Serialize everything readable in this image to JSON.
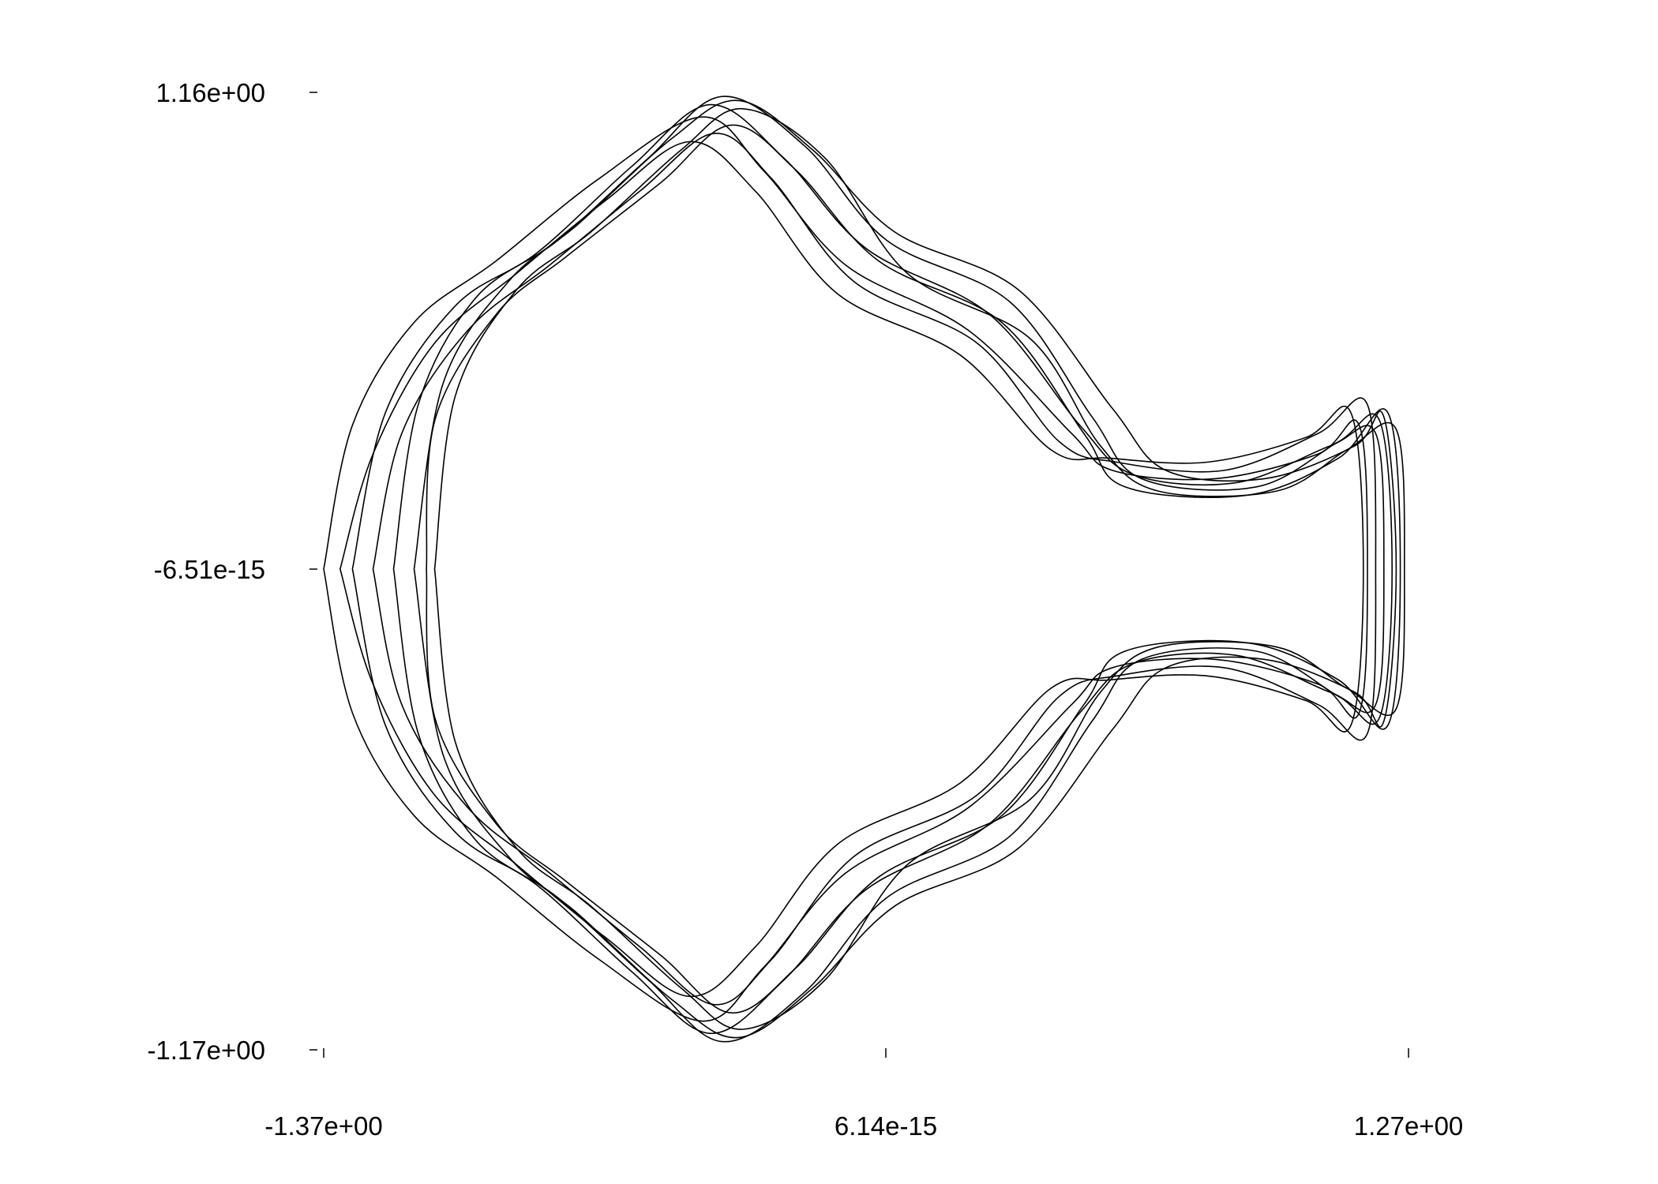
{
  "chart_data": {
    "type": "line",
    "title": "",
    "xlabel": "",
    "ylabel": "",
    "xlim": [
      -1.37,
      1.27
    ],
    "ylim": [
      -1.17,
      1.16
    ],
    "x_ticks": [
      {
        "value": -1.37,
        "label": "-1.37e+00"
      },
      {
        "value": 0.0,
        "label": "6.14e-15"
      },
      {
        "value": 1.27,
        "label": "1.27e+00"
      }
    ],
    "y_ticks": [
      {
        "value": 1.16,
        "label": "1.16e+00"
      },
      {
        "value": 0.0,
        "label": "-6.51e-15"
      },
      {
        "value": -1.17,
        "label": "-1.17e+00"
      }
    ],
    "grid": false,
    "legend": "none",
    "line_color": "#000000",
    "series": [
      {
        "points": [
          [
            -1.37,
            0.0
          ],
          [
            -1.3,
            0.35
          ],
          [
            -1.15,
            0.6
          ],
          [
            -0.95,
            0.75
          ],
          [
            -0.7,
            0.95
          ],
          [
            -0.45,
            1.1
          ],
          [
            -0.3,
            0.97
          ],
          [
            -0.1,
            0.74
          ],
          [
            0.2,
            0.58
          ],
          [
            0.45,
            0.33
          ],
          [
            0.55,
            0.24
          ],
          [
            0.8,
            0.22
          ],
          [
            1.05,
            0.28
          ],
          [
            1.15,
            0.35
          ],
          [
            1.17,
            0.0
          ],
          [
            1.15,
            -0.35
          ],
          [
            1.05,
            -0.28
          ],
          [
            0.8,
            -0.22
          ],
          [
            0.55,
            -0.24
          ],
          [
            0.45,
            -0.33
          ],
          [
            0.2,
            -0.58
          ],
          [
            -0.1,
            -0.74
          ],
          [
            -0.3,
            -0.97
          ],
          [
            -0.45,
            -1.1
          ],
          [
            -0.7,
            -0.95
          ],
          [
            -0.95,
            -0.75
          ],
          [
            -1.15,
            -0.6
          ],
          [
            -1.3,
            -0.35
          ],
          [
            -1.37,
            0.0
          ]
        ]
      },
      {
        "points": [
          [
            -1.3,
            0.0
          ],
          [
            -1.22,
            0.38
          ],
          [
            -1.05,
            0.64
          ],
          [
            -0.85,
            0.77
          ],
          [
            -0.62,
            0.98
          ],
          [
            -0.43,
            1.13
          ],
          [
            -0.25,
            1.0
          ],
          [
            -0.05,
            0.78
          ],
          [
            0.25,
            0.62
          ],
          [
            0.47,
            0.35
          ],
          [
            0.6,
            0.23
          ],
          [
            0.85,
            0.21
          ],
          [
            1.08,
            0.3
          ],
          [
            1.19,
            0.33
          ],
          [
            1.21,
            0.0
          ],
          [
            1.19,
            -0.33
          ],
          [
            1.08,
            -0.3
          ],
          [
            0.85,
            -0.21
          ],
          [
            0.6,
            -0.23
          ],
          [
            0.47,
            -0.35
          ],
          [
            0.25,
            -0.62
          ],
          [
            -0.05,
            -0.78
          ],
          [
            -0.25,
            -1.0
          ],
          [
            -0.43,
            -1.13
          ],
          [
            -0.62,
            -0.98
          ],
          [
            -0.85,
            -0.77
          ],
          [
            -1.05,
            -0.64
          ],
          [
            -1.22,
            -0.38
          ],
          [
            -1.3,
            0.0
          ]
        ]
      },
      {
        "points": [
          [
            -1.2,
            0.0
          ],
          [
            -1.14,
            0.4
          ],
          [
            -1.0,
            0.66
          ],
          [
            -0.8,
            0.8
          ],
          [
            -0.58,
            1.0
          ],
          [
            -0.4,
            1.15
          ],
          [
            -0.2,
            1.03
          ],
          [
            0.0,
            0.8
          ],
          [
            0.3,
            0.65
          ],
          [
            0.5,
            0.37
          ],
          [
            0.62,
            0.22
          ],
          [
            0.9,
            0.2
          ],
          [
            1.1,
            0.31
          ],
          [
            1.2,
            0.36
          ],
          [
            1.23,
            0.0
          ],
          [
            1.2,
            -0.36
          ],
          [
            1.1,
            -0.31
          ],
          [
            0.9,
            -0.2
          ],
          [
            0.62,
            -0.22
          ],
          [
            0.5,
            -0.37
          ],
          [
            0.3,
            -0.65
          ],
          [
            0.0,
            -0.8
          ],
          [
            -0.2,
            -1.03
          ],
          [
            -0.4,
            -1.15
          ],
          [
            -0.58,
            -1.0
          ],
          [
            -0.8,
            -0.8
          ],
          [
            -1.0,
            -0.66
          ],
          [
            -1.14,
            -0.4
          ],
          [
            -1.2,
            0.0
          ]
        ]
      },
      {
        "points": [
          [
            -1.12,
            0.0
          ],
          [
            -1.1,
            0.36
          ],
          [
            -0.95,
            0.62
          ],
          [
            -0.78,
            0.76
          ],
          [
            -0.55,
            0.94
          ],
          [
            -0.38,
            1.08
          ],
          [
            -0.22,
            0.97
          ],
          [
            -0.02,
            0.75
          ],
          [
            0.28,
            0.6
          ],
          [
            0.48,
            0.33
          ],
          [
            0.58,
            0.2
          ],
          [
            0.88,
            0.18
          ],
          [
            1.1,
            0.27
          ],
          [
            1.22,
            0.38
          ],
          [
            1.25,
            0.0
          ],
          [
            1.22,
            -0.38
          ],
          [
            1.1,
            -0.27
          ],
          [
            0.88,
            -0.18
          ],
          [
            0.58,
            -0.2
          ],
          [
            0.48,
            -0.33
          ],
          [
            0.28,
            -0.6
          ],
          [
            -0.02,
            -0.75
          ],
          [
            -0.22,
            -0.97
          ],
          [
            -0.38,
            -1.08
          ],
          [
            -0.55,
            -0.94
          ],
          [
            -0.78,
            -0.76
          ],
          [
            -0.95,
            -0.62
          ],
          [
            -1.1,
            -0.36
          ],
          [
            -1.12,
            0.0
          ]
        ]
      },
      {
        "points": [
          [
            -1.1,
            0.0
          ],
          [
            -1.05,
            0.42
          ],
          [
            -0.9,
            0.68
          ],
          [
            -0.72,
            0.82
          ],
          [
            -0.5,
            1.02
          ],
          [
            -0.35,
            1.12
          ],
          [
            -0.15,
            1.0
          ],
          [
            0.05,
            0.72
          ],
          [
            0.35,
            0.56
          ],
          [
            0.52,
            0.3
          ],
          [
            0.66,
            0.19
          ],
          [
            0.95,
            0.19
          ],
          [
            1.12,
            0.29
          ],
          [
            1.24,
            0.34
          ],
          [
            1.26,
            0.0
          ],
          [
            1.24,
            -0.34
          ],
          [
            1.12,
            -0.29
          ],
          [
            0.95,
            -0.19
          ],
          [
            0.66,
            -0.19
          ],
          [
            0.52,
            -0.3
          ],
          [
            0.35,
            -0.56
          ],
          [
            0.05,
            -0.72
          ],
          [
            -0.15,
            -1.0
          ],
          [
            -0.35,
            -1.12
          ],
          [
            -0.5,
            -1.02
          ],
          [
            -0.72,
            -0.82
          ],
          [
            -0.9,
            -0.68
          ],
          [
            -1.05,
            -0.42
          ],
          [
            -1.1,
            0.0
          ]
        ]
      },
      {
        "points": [
          [
            -1.25,
            0.0
          ],
          [
            -1.18,
            0.33
          ],
          [
            -1.02,
            0.58
          ],
          [
            -0.82,
            0.74
          ],
          [
            -0.6,
            0.92
          ],
          [
            -0.42,
            1.06
          ],
          [
            -0.28,
            0.95
          ],
          [
            -0.08,
            0.7
          ],
          [
            0.22,
            0.55
          ],
          [
            0.42,
            0.31
          ],
          [
            0.56,
            0.26
          ],
          [
            0.82,
            0.24
          ],
          [
            1.05,
            0.33
          ],
          [
            1.17,
            0.4
          ],
          [
            1.19,
            0.0
          ],
          [
            1.17,
            -0.4
          ],
          [
            1.05,
            -0.33
          ],
          [
            0.82,
            -0.24
          ],
          [
            0.56,
            -0.26
          ],
          [
            0.42,
            -0.31
          ],
          [
            0.22,
            -0.55
          ],
          [
            -0.08,
            -0.7
          ],
          [
            -0.28,
            -0.95
          ],
          [
            -0.42,
            -1.06
          ],
          [
            -0.6,
            -0.92
          ],
          [
            -0.82,
            -0.74
          ],
          [
            -1.02,
            -0.58
          ],
          [
            -1.18,
            -0.33
          ],
          [
            -1.25,
            0.0
          ]
        ]
      },
      {
        "points": [
          [
            -1.33,
            0.0
          ],
          [
            -1.25,
            0.28
          ],
          [
            -1.1,
            0.55
          ],
          [
            -0.9,
            0.72
          ],
          [
            -0.68,
            0.9
          ],
          [
            -0.48,
            1.04
          ],
          [
            -0.32,
            0.92
          ],
          [
            -0.12,
            0.67
          ],
          [
            0.18,
            0.52
          ],
          [
            0.4,
            0.29
          ],
          [
            0.54,
            0.27
          ],
          [
            0.78,
            0.26
          ],
          [
            1.02,
            0.32
          ],
          [
            1.13,
            0.38
          ],
          [
            1.16,
            0.0
          ],
          [
            1.13,
            -0.38
          ],
          [
            1.02,
            -0.32
          ],
          [
            0.78,
            -0.26
          ],
          [
            0.54,
            -0.27
          ],
          [
            0.4,
            -0.29
          ],
          [
            0.18,
            -0.52
          ],
          [
            -0.12,
            -0.67
          ],
          [
            -0.32,
            -0.92
          ],
          [
            -0.48,
            -1.04
          ],
          [
            -0.68,
            -0.9
          ],
          [
            -0.9,
            -0.72
          ],
          [
            -1.1,
            -0.55
          ],
          [
            -1.25,
            -0.28
          ],
          [
            -1.33,
            0.0
          ]
        ]
      },
      {
        "points": [
          [
            -1.15,
            0.0
          ],
          [
            -1.08,
            0.45
          ],
          [
            -0.92,
            0.7
          ],
          [
            -0.75,
            0.84
          ],
          [
            -0.52,
            1.05
          ],
          [
            -0.36,
            1.14
          ],
          [
            -0.18,
            1.02
          ],
          [
            0.02,
            0.82
          ],
          [
            0.32,
            0.68
          ],
          [
            0.55,
            0.39
          ],
          [
            0.68,
            0.24
          ],
          [
            0.92,
            0.22
          ],
          [
            1.14,
            0.3
          ],
          [
            1.21,
            0.37
          ],
          [
            1.24,
            0.0
          ],
          [
            1.21,
            -0.37
          ],
          [
            1.14,
            -0.3
          ],
          [
            0.92,
            -0.22
          ],
          [
            0.68,
            -0.24
          ],
          [
            0.55,
            -0.39
          ],
          [
            0.32,
            -0.68
          ],
          [
            0.02,
            -0.82
          ],
          [
            -0.18,
            -1.02
          ],
          [
            -0.36,
            -1.14
          ],
          [
            -0.52,
            -1.05
          ],
          [
            -0.75,
            -0.84
          ],
          [
            -0.92,
            -0.7
          ],
          [
            -1.08,
            -0.45
          ],
          [
            -1.15,
            0.0
          ]
        ]
      }
    ]
  }
}
